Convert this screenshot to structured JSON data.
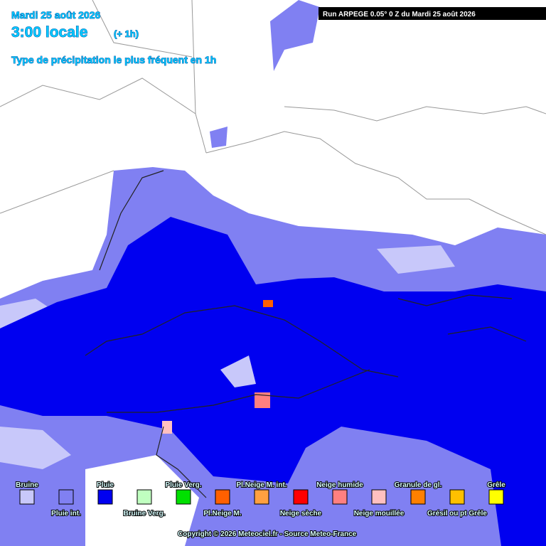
{
  "header": {
    "date": "Mardi 25 août 2026",
    "time": "3:00 locale",
    "offset": "(+ 1h)",
    "subtitle": "Type de précipitation le plus fréquent en 1h"
  },
  "run_info": "Run ARPEGE 0.05° 0 Z du Mardi 25 août 2026",
  "legend": [
    {
      "label": "Bruine",
      "color": "#c8c8fa"
    },
    {
      "label": "Pluie int.",
      "color": "#8080f2"
    },
    {
      "label": "Pluie",
      "color": "#0000f0"
    },
    {
      "label": "Bruine Verg.",
      "color": "#c0ffc0"
    },
    {
      "label": "Pluie Verg.",
      "color": "#00e000"
    },
    {
      "label": "Pl.Neige M.",
      "color": "#ff6000"
    },
    {
      "label": "Pl.Neige M. int.",
      "color": "#ffa040"
    },
    {
      "label": "Neige sèche",
      "color": "#ff0000"
    },
    {
      "label": "Neige humide",
      "color": "#ff8080"
    },
    {
      "label": "Neige mouillée",
      "color": "#ffc0c0"
    },
    {
      "label": "Granule de gl.",
      "color": "#ff8000"
    },
    {
      "label": "Grésil ou pt Grêle",
      "color": "#ffc000"
    },
    {
      "label": "Grêle",
      "color": "#ffff00"
    }
  ],
  "footer": "Copyright © 2026 Meteociel.fr - Source Meteo-France"
}
